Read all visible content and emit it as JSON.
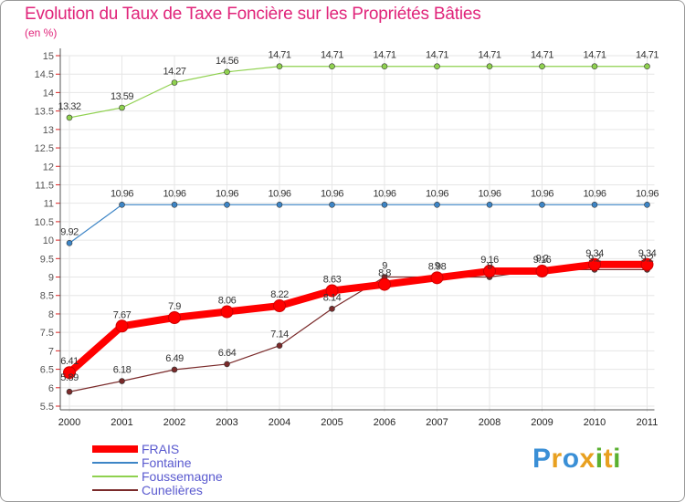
{
  "chart_data": {
    "type": "line",
    "title": "Evolution du Taux de Taxe Foncière sur les Propriétés Bâties",
    "subtitle": "(en %)",
    "categories": [
      "2000",
      "2001",
      "2002",
      "2003",
      "2004",
      "2005",
      "2006",
      "2007",
      "2008",
      "2009",
      "2010",
      "2011"
    ],
    "ylim": [
      5.5,
      15
    ],
    "yticks": [
      "5.5",
      "6",
      "6.5",
      "7",
      "7.5",
      "8",
      "8.5",
      "9",
      "9.5",
      "10",
      "10.5",
      "11",
      "11.5",
      "12",
      "12.5",
      "13",
      "13.5",
      "14",
      "14.5",
      "15"
    ],
    "series": [
      {
        "name": "FRAIS",
        "color": "#ff0000",
        "values": [
          6.41,
          7.67,
          7.9,
          8.06,
          8.22,
          8.63,
          8.8,
          8.98,
          9.16,
          9.16,
          9.34,
          9.34
        ],
        "labels": [
          "6.41",
          "7.67",
          "7.9",
          "8.06",
          "8.22",
          "8.63",
          "8.8",
          "8.98",
          "9.16",
          "9.16",
          "9.34",
          "9.34"
        ]
      },
      {
        "name": "Fontaine",
        "color": "#3d85c6",
        "values": [
          9.92,
          10.96,
          10.96,
          10.96,
          10.96,
          10.96,
          10.96,
          10.96,
          10.96,
          10.96,
          10.96,
          10.96
        ],
        "labels": [
          "9.92",
          "10.96",
          "10.96",
          "10.96",
          "10.96",
          "10.96",
          "10.96",
          "10.96",
          "10.96",
          "10.96",
          "10.96",
          "10.96"
        ]
      },
      {
        "name": "Foussemagne",
        "color": "#8fd14f",
        "values": [
          13.32,
          13.59,
          14.27,
          14.56,
          14.71,
          14.71,
          14.71,
          14.71,
          14.71,
          14.71,
          14.71,
          14.71
        ],
        "labels": [
          "13.32",
          "13.59",
          "14.27",
          "14.56",
          "14.71",
          "14.71",
          "14.71",
          "14.71",
          "14.71",
          "14.71",
          "14.71",
          "14.71"
        ]
      },
      {
        "name": "Cunelières",
        "color": "#7a2a2a",
        "values": [
          5.89,
          6.18,
          6.49,
          6.64,
          7.14,
          8.14,
          9,
          9,
          9,
          9.2,
          9.2,
          9.2
        ],
        "labels": [
          "5.89",
          "6.18",
          "6.49",
          "6.64",
          "7.14",
          "8.14",
          "9",
          "9",
          "9",
          "9.2",
          "9.2",
          "9.2"
        ]
      }
    ]
  },
  "brand": {
    "letters": [
      "P",
      "r",
      "o",
      "x",
      "i",
      "t",
      "i"
    ],
    "colors": [
      "#3a8fd6",
      "#e8a020",
      "#3a8fd6",
      "#e8a020",
      "#5ab030",
      "#e8a020",
      "#5ab030"
    ]
  }
}
